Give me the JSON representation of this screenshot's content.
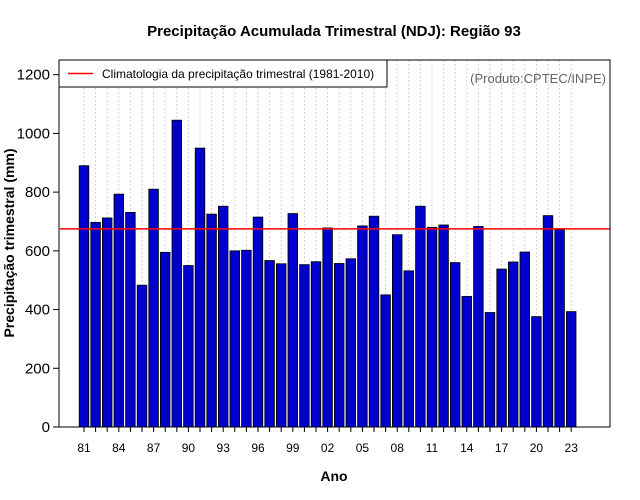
{
  "chart_data": {
    "type": "bar",
    "title": "Precipitação Acumulada Trimestral (NDJ): Região 93",
    "xlabel": "Ano",
    "ylabel": "Precipitação trimestral (mm)",
    "ylim": [
      0,
      1250
    ],
    "yticks": [
      "0",
      "200",
      "400",
      "600",
      "800",
      "1000",
      "1200"
    ],
    "x_tick_labels": [
      "81",
      "84",
      "87",
      "90",
      "93",
      "96",
      "99",
      "02",
      "05",
      "08",
      "11",
      "14",
      "17",
      "20",
      "23"
    ],
    "grid": "vertical-dotted",
    "categories": [
      "1981",
      "1982",
      "1983",
      "1984",
      "1985",
      "1986",
      "1987",
      "1988",
      "1989",
      "1990",
      "1991",
      "1992",
      "1993",
      "1994",
      "1995",
      "1996",
      "1997",
      "1998",
      "1999",
      "2000",
      "2001",
      "2002",
      "2003",
      "2004",
      "2005",
      "2006",
      "2007",
      "2008",
      "2009",
      "2010",
      "2011",
      "2012",
      "2013",
      "2014",
      "2015",
      "2016",
      "2017",
      "2018",
      "2019",
      "2020",
      "2021",
      "2022",
      "2023"
    ],
    "values": [
      890,
      697,
      712,
      793,
      731,
      483,
      810,
      595,
      1045,
      550,
      950,
      725,
      752,
      600,
      602,
      715,
      567,
      556,
      727,
      553,
      563,
      678,
      557,
      573,
      685,
      718,
      450,
      655,
      532,
      752,
      680,
      688,
      560,
      445,
      683,
      390,
      538,
      562,
      596,
      376,
      720,
      672,
      393
    ],
    "bar_color": "#0000cd",
    "climatology": {
      "label": "Climatologia da precipitação trimestral (1981-2010)",
      "value": 675,
      "color": "#ff0000"
    },
    "legend_position": "top-left",
    "credit": "(Produto:CPTEC/INPE)"
  }
}
